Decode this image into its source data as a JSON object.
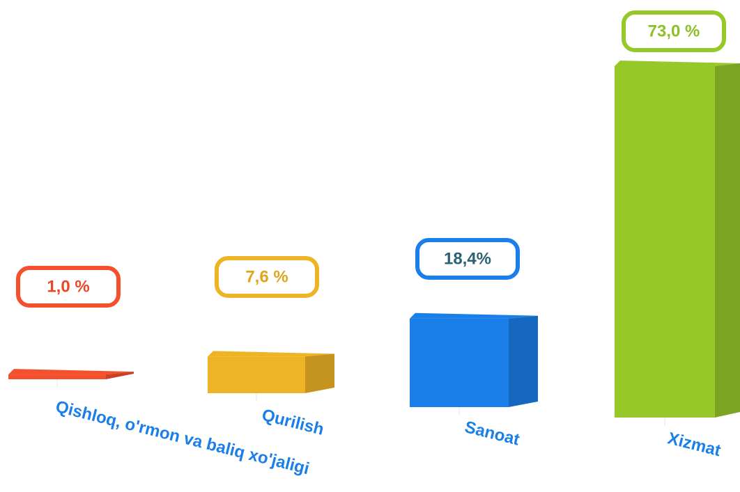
{
  "chart_data": {
    "type": "bar3d",
    "categories": [
      "Qishloq, o'rmon va baliq xo'jaligi",
      "Qurilish",
      "Sanoat",
      "Xizmat"
    ],
    "values": [
      1.0,
      7.6,
      18.4,
      73.0
    ],
    "value_labels": [
      "1,0 %",
      "7,6 %",
      "18,4%",
      "73,0 %"
    ],
    "colors": [
      "#f4502e",
      "#efb425",
      "#1a7fe8",
      "#96c82a"
    ],
    "label_text_colors": [
      "#e9472a",
      "#e0a51c",
      "#2b6273",
      "#8cc026"
    ],
    "category_color": "#1a7fe8"
  }
}
